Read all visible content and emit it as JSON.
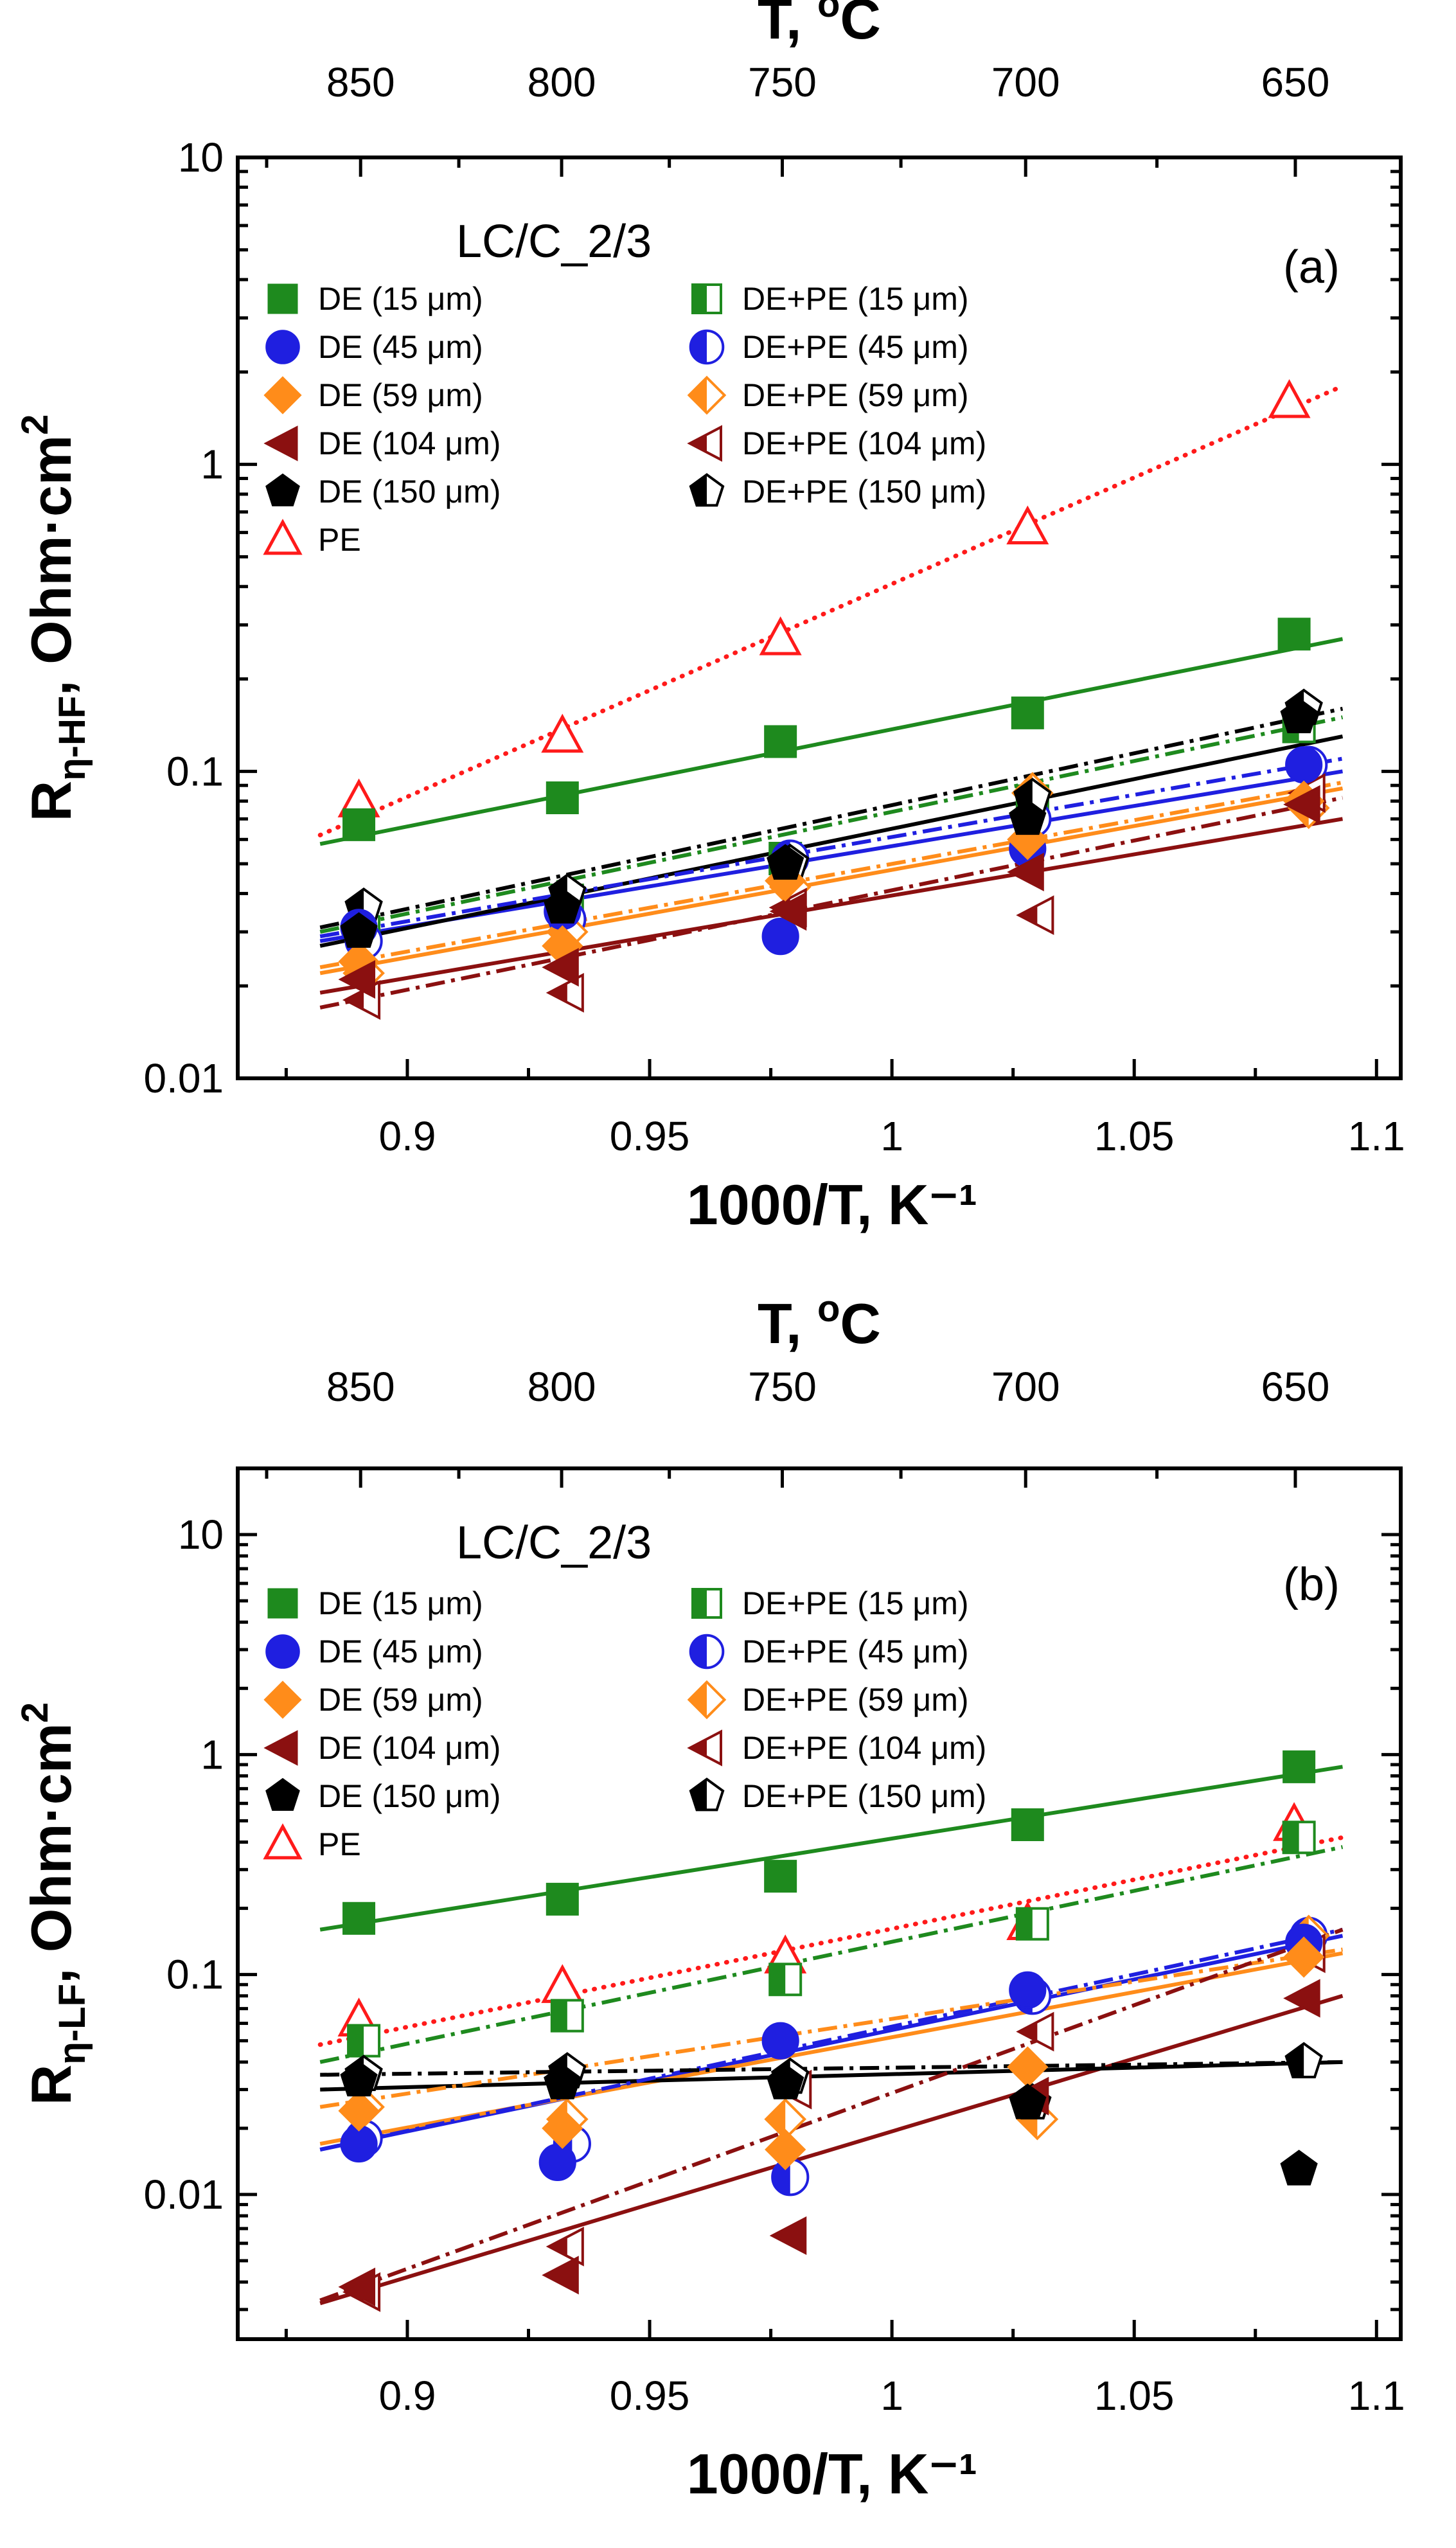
{
  "chart_data": [
    {
      "type": "scatter",
      "panel_label": "(a)",
      "annotation": "LC/C_2/3",
      "xlabel": "1000/T, K⁻¹",
      "ylabel": "Rη-HF, Ohm·cm²",
      "ylabel_main": "R",
      "ylabel_sub": "η-HF",
      "ylabel_rest": ", Ohm·cm",
      "ylabel_sup": "2",
      "top_label": "T, °C",
      "top_label_main": "T, ",
      "top_label_sup": "o",
      "top_label_rest": "C",
      "xlim": [
        0.865,
        1.105
      ],
      "ylim": [
        0.01,
        10
      ],
      "yscale": "log",
      "x_ticks": [
        0.9,
        0.95,
        1,
        1.05,
        1.1
      ],
      "x_tick_labels": [
        "0.9",
        "0.95",
        "1",
        "1.05",
        "1.1"
      ],
      "y_ticks": [
        0.01,
        0.1,
        1,
        10
      ],
      "y_tick_labels": [
        "0.01",
        "0.1",
        "1",
        "10"
      ],
      "top_ticks": [
        850,
        800,
        750,
        700,
        650
      ],
      "top_tick_labels": [
        "850",
        "800",
        "750",
        "700",
        "650"
      ],
      "legend_placement": "top-left",
      "series": [
        {
          "name": "DE (15 μm)",
          "marker": "square",
          "fill": "full",
          "color": "#1e8a1e",
          "x": [
            0.89,
            0.932,
            0.977,
            1.028,
            1.083
          ],
          "values": [
            0.067,
            0.082,
            0.125,
            0.155,
            0.28
          ],
          "fit": {
            "x": [
              0.882,
              1.093
            ],
            "y": [
              0.058,
              0.27
            ],
            "dash": "solid"
          }
        },
        {
          "name": "DE (45 μm)",
          "marker": "circle",
          "fill": "full",
          "color": "#1f1fe0",
          "x": [
            0.89,
            0.932,
            0.977,
            1.028,
            1.085
          ],
          "values": [
            0.031,
            0.035,
            0.029,
            0.056,
            0.105
          ],
          "fit": {
            "x": [
              0.882,
              1.093
            ],
            "y": [
              0.028,
              0.1
            ],
            "dash": "solid"
          }
        },
        {
          "name": "DE (59 μm)",
          "marker": "diamond",
          "fill": "full",
          "color": "#ff8c1a",
          "x": [
            0.89,
            0.932,
            0.978,
            1.028,
            1.085
          ],
          "values": [
            0.024,
            0.027,
            0.044,
            0.06,
            0.08
          ],
          "fit": {
            "x": [
              0.882,
              1.093
            ],
            "y": [
              0.022,
              0.088
            ],
            "dash": "solid"
          }
        },
        {
          "name": "DE (104 μm)",
          "marker": "tri-left",
          "fill": "full",
          "color": "#8b1010",
          "x": [
            0.89,
            0.932,
            0.979,
            1.028,
            1.085
          ],
          "values": [
            0.021,
            0.023,
            0.035,
            0.047,
            0.078
          ],
          "fit": {
            "x": [
              0.882,
              1.093
            ],
            "y": [
              0.019,
              0.07
            ],
            "dash": "solid"
          }
        },
        {
          "name": "DE (150 μm)",
          "marker": "pentagon",
          "fill": "full",
          "color": "#000000",
          "x": [
            0.89,
            0.932,
            0.978,
            1.028,
            1.084
          ],
          "values": [
            0.03,
            0.036,
            0.05,
            0.07,
            0.15
          ],
          "fit": {
            "x": [
              0.882,
              1.093
            ],
            "y": [
              0.027,
              0.13
            ],
            "dash": "solid"
          }
        },
        {
          "name": "PE",
          "marker": "triangle-up",
          "fill": "none",
          "color": "#ff1a1a",
          "x": [
            0.89,
            0.932,
            0.977,
            1.028,
            1.082
          ],
          "values": [
            0.08,
            0.13,
            0.27,
            0.62,
            1.6
          ],
          "fit": {
            "x": [
              0.882,
              1.093
            ],
            "y": [
              0.062,
              1.8
            ],
            "dash": "dotted"
          }
        },
        {
          "name": "DE+PE (15 μm)",
          "marker": "square",
          "fill": "half",
          "color": "#1e8a1e",
          "x": [
            0.891,
            0.933,
            0.978,
            1.029,
            1.084
          ],
          "values": [
            0.03,
            0.038,
            0.052,
            0.08,
            0.14
          ],
          "fit": {
            "x": [
              0.882,
              1.093
            ],
            "y": [
              0.03,
              0.15
            ],
            "dash": "dashdot"
          }
        },
        {
          "name": "DE+PE (45 μm)",
          "marker": "circle",
          "fill": "half",
          "color": "#1f1fe0",
          "x": [
            0.891,
            0.933,
            0.979,
            1.029,
            1.086
          ],
          "values": [
            0.028,
            0.033,
            0.052,
            0.07,
            0.105
          ],
          "fit": {
            "x": [
              0.882,
              1.093
            ],
            "y": [
              0.029,
              0.11
            ],
            "dash": "dashdot"
          }
        },
        {
          "name": "DE+PE (59 μm)",
          "marker": "diamond",
          "fill": "half",
          "color": "#ff8c1a",
          "x": [
            0.891,
            0.933,
            0.979,
            1.029,
            1.086
          ],
          "values": [
            0.022,
            0.03,
            0.042,
            0.085,
            0.076
          ],
          "fit": {
            "x": [
              0.882,
              1.093
            ],
            "y": [
              0.023,
              0.092
            ],
            "dash": "dashdot"
          }
        },
        {
          "name": "DE+PE (104 μm)",
          "marker": "tri-left",
          "fill": "half",
          "color": "#8b1010",
          "x": [
            0.891,
            0.933,
            0.979,
            1.03,
            1.086
          ],
          "values": [
            0.018,
            0.019,
            0.036,
            0.034,
            0.085
          ],
          "fit": {
            "x": [
              0.882,
              1.093
            ],
            "y": [
              0.017,
              0.082
            ],
            "dash": "dashdot"
          }
        },
        {
          "name": "DE+PE (150 μm)",
          "marker": "pentagon",
          "fill": "half",
          "color": "#000000",
          "x": [
            0.891,
            0.933,
            0.979,
            1.029,
            1.085
          ],
          "values": [
            0.036,
            0.04,
            0.05,
            0.082,
            0.16
          ],
          "fit": {
            "x": [
              0.882,
              1.093
            ],
            "y": [
              0.031,
              0.16
            ],
            "dash": "dashdot"
          }
        }
      ]
    },
    {
      "type": "scatter",
      "panel_label": "(b)",
      "annotation": "LC/C_2/3",
      "xlabel": "1000/T, K⁻¹",
      "ylabel": "Rη-LF, Ohm·cm²",
      "ylabel_main": "R",
      "ylabel_sub": "η-LF",
      "ylabel_rest": ", Ohm·cm",
      "ylabel_sup": "2",
      "top_label": "T, °C",
      "top_label_main": "T, ",
      "top_label_sup": "o",
      "top_label_rest": "C",
      "xlim": [
        0.865,
        1.105
      ],
      "ylim": [
        0.0022,
        20
      ],
      "yscale": "log",
      "x_ticks": [
        0.9,
        0.95,
        1,
        1.05,
        1.1
      ],
      "x_tick_labels": [
        "0.9",
        "0.95",
        "1",
        "1.05",
        "1.1"
      ],
      "y_ticks": [
        0.01,
        0.1,
        1,
        10
      ],
      "y_tick_labels": [
        "0.01",
        "0.1",
        "1",
        "10"
      ],
      "top_ticks": [
        850,
        800,
        750,
        700,
        650
      ],
      "top_tick_labels": [
        "850",
        "800",
        "750",
        "700",
        "650"
      ],
      "legend_placement": "top-left",
      "series": [
        {
          "name": "DE (15 μm)",
          "marker": "square",
          "fill": "full",
          "color": "#1e8a1e",
          "x": [
            0.89,
            0.932,
            0.977,
            1.028,
            1.084
          ],
          "values": [
            0.18,
            0.22,
            0.28,
            0.48,
            0.88
          ],
          "fit": {
            "x": [
              0.882,
              1.093
            ],
            "y": [
              0.16,
              0.88
            ],
            "dash": "solid"
          }
        },
        {
          "name": "DE (45 μm)",
          "marker": "circle",
          "fill": "full",
          "color": "#1f1fe0",
          "x": [
            0.89,
            0.931,
            0.977,
            1.028,
            1.085
          ],
          "values": [
            0.017,
            0.014,
            0.05,
            0.085,
            0.14
          ],
          "fit": {
            "x": [
              0.882,
              1.093
            ],
            "y": [
              0.016,
              0.15
            ],
            "dash": "solid"
          }
        },
        {
          "name": "DE (59 μm)",
          "marker": "diamond",
          "fill": "full",
          "color": "#ff8c1a",
          "x": [
            0.89,
            0.932,
            0.978,
            1.028,
            1.085
          ],
          "values": [
            0.024,
            0.02,
            0.016,
            0.038,
            0.12
          ],
          "fit": {
            "x": [
              0.882,
              1.093
            ],
            "y": [
              0.017,
              0.125
            ],
            "dash": "solid"
          }
        },
        {
          "name": "DE (104 μm)",
          "marker": "tri-left",
          "fill": "full",
          "color": "#8b1010",
          "x": [
            0.89,
            0.932,
            0.979,
            1.029,
            1.085
          ],
          "values": [
            0.0038,
            0.0043,
            0.0065,
            0.028,
            0.078
          ],
          "fit": {
            "x": [
              0.882,
              1.093
            ],
            "y": [
              0.0032,
              0.08
            ],
            "dash": "solid"
          }
        },
        {
          "name": "DE (150 μm)",
          "marker": "pentagon",
          "fill": "full",
          "color": "#000000",
          "x": [
            0.89,
            0.932,
            0.978,
            1.028,
            1.084
          ],
          "values": [
            0.033,
            0.032,
            0.032,
            0.026,
            0.013
          ],
          "fit": {
            "x": [
              0.882,
              1.093
            ],
            "y": [
              0.03,
              0.04
            ],
            "dash": "solid"
          }
        },
        {
          "name": "PE",
          "marker": "triangle-up",
          "fill": "none",
          "color": "#ff1a1a",
          "x": [
            0.89,
            0.932,
            0.978,
            1.028,
            1.083
          ],
          "values": [
            0.062,
            0.088,
            0.12,
            0.17,
            0.48
          ],
          "fit": {
            "x": [
              0.882,
              1.093
            ],
            "y": [
              0.048,
              0.42
            ],
            "dash": "dotted"
          }
        },
        {
          "name": "DE+PE (15 μm)",
          "marker": "square",
          "fill": "half",
          "color": "#1e8a1e",
          "x": [
            0.891,
            0.933,
            0.978,
            1.029,
            1.084
          ],
          "values": [
            0.05,
            0.065,
            0.095,
            0.17,
            0.42
          ],
          "fit": {
            "x": [
              0.882,
              1.093
            ],
            "y": [
              0.04,
              0.38
            ],
            "dash": "dashdot"
          }
        },
        {
          "name": "DE+PE (45 μm)",
          "marker": "circle",
          "fill": "half",
          "color": "#1f1fe0",
          "x": [
            0.891,
            0.934,
            0.979,
            1.029,
            1.086
          ],
          "values": [
            0.018,
            0.017,
            0.012,
            0.08,
            0.15
          ],
          "fit": {
            "x": [
              0.882,
              1.093
            ],
            "y": [
              0.016,
              0.16
            ],
            "dash": "dashdot"
          }
        },
        {
          "name": "DE+PE (59 μm)",
          "marker": "diamond",
          "fill": "half",
          "color": "#ff8c1a",
          "x": [
            0.891,
            0.933,
            0.978,
            1.03,
            1.086
          ],
          "values": [
            0.025,
            0.022,
            0.022,
            0.022,
            0.15
          ],
          "fit": {
            "x": [
              0.882,
              1.093
            ],
            "y": [
              0.025,
              0.13
            ],
            "dash": "dashdot"
          }
        },
        {
          "name": "DE+PE (104 μm)",
          "marker": "tri-left",
          "fill": "half",
          "color": "#8b1010",
          "x": [
            0.891,
            0.933,
            0.98,
            1.03,
            1.086
          ],
          "values": [
            0.0036,
            0.0058,
            0.03,
            0.055,
            0.125
          ],
          "fit": {
            "x": [
              0.882,
              1.093
            ],
            "y": [
              0.0033,
              0.16
            ],
            "dash": "dashdot"
          }
        },
        {
          "name": "DE+PE (150 μm)",
          "marker": "pentagon",
          "fill": "half",
          "color": "#000000",
          "x": [
            0.891,
            0.933,
            0.979,
            1.029,
            1.085
          ],
          "values": [
            0.035,
            0.036,
            0.034,
            0.026,
            0.04
          ],
          "fit": {
            "x": [
              0.882,
              1.093
            ],
            "y": [
              0.035,
              0.04
            ],
            "dash": "dashdot"
          }
        }
      ]
    }
  ]
}
